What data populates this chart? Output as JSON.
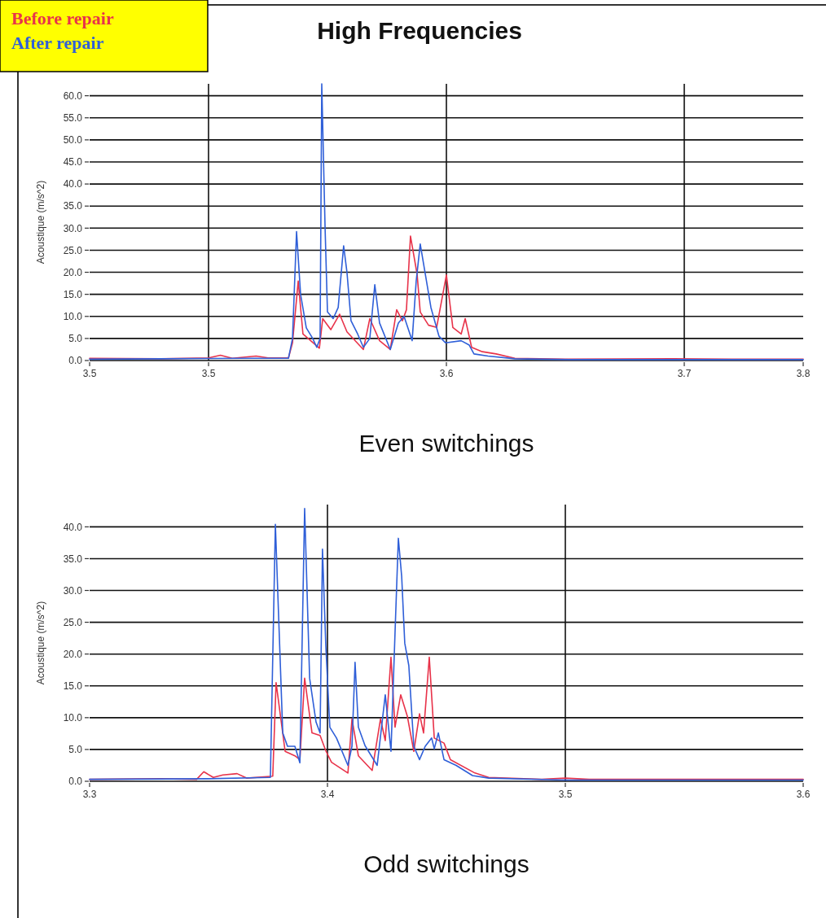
{
  "chart_data": [
    {
      "type": "line",
      "title": "High Frequencies",
      "xlabel": "Even switchings",
      "ylabel": "Acoustique (m/s^2)",
      "legend": "top left",
      "grid": true,
      "marker": "none",
      "line_style": "solid",
      "xlim": [
        3.45,
        3.75
      ],
      "xticks": [
        {
          "value": 3.45,
          "label": "3.5"
        },
        3.5,
        3.6,
        3.7,
        {
          "value": 3.75,
          "label": "3.8"
        }
      ],
      "ylim": [
        0,
        62.7
      ],
      "yticks": [
        {
          "value": 0,
          "label": "0.0"
        },
        {
          "value": 5,
          "label": "5.0"
        },
        {
          "value": 10,
          "label": "10.0"
        },
        {
          "value": 15,
          "label": "15.0"
        },
        {
          "value": 20,
          "label": "20.0"
        },
        {
          "value": 25,
          "label": "25.0"
        },
        {
          "value": 30,
          "label": "30.0"
        },
        {
          "value": 35,
          "label": "35.0"
        },
        {
          "value": 40,
          "label": "40.0"
        },
        {
          "value": 45,
          "label": "45.0"
        },
        {
          "value": 50,
          "label": "50.0"
        },
        {
          "value": 55,
          "label": "55.0"
        },
        {
          "value": 60,
          "label": "60.0"
        }
      ],
      "series": [
        {
          "name": "Before repair",
          "color": "#e8334a",
          "x": [
            3.45,
            3.48,
            3.5,
            3.505,
            3.51,
            3.52,
            3.525,
            3.5336,
            3.5353,
            3.5377,
            3.5397,
            3.5466,
            3.548,
            3.5514,
            3.5551,
            3.5582,
            3.5651,
            3.5678,
            3.5719,
            3.5764,
            3.5791,
            3.5815,
            3.5832,
            3.5849,
            3.5877,
            3.589,
            3.5925,
            3.5959,
            3.6,
            3.6027,
            3.6062,
            3.6079,
            3.6106,
            3.6151,
            3.6209,
            3.6288,
            3.65,
            3.695,
            3.72,
            3.75
          ],
          "values": [
            0.5,
            0.4,
            0.6,
            1.2,
            0.5,
            1.0,
            0.6,
            0.6,
            4,
            18,
            6,
            2.8,
            9.5,
            7,
            10.5,
            6.5,
            2.5,
            9.5,
            4.5,
            2.5,
            11.5,
            9,
            11.5,
            28.2,
            19.5,
            11,
            8,
            7.5,
            19.4,
            7.5,
            6,
            9.5,
            3,
            2,
            1.5,
            0.5,
            0.3,
            0.4,
            0.3,
            0.3
          ]
        },
        {
          "name": "After repair",
          "color": "#2f5fd8",
          "x": [
            3.45,
            3.4805,
            3.5147,
            3.5336,
            3.5353,
            3.537,
            3.5387,
            3.5411,
            3.5438,
            3.5455,
            3.5469,
            3.5476,
            3.549,
            3.55,
            3.5524,
            3.5545,
            3.5568,
            3.5582,
            3.5599,
            3.5627,
            3.5651,
            3.5678,
            3.5699,
            3.5719,
            3.5764,
            3.5798,
            3.5822,
            3.5856,
            3.5873,
            3.589,
            3.5935,
            3.5969,
            3.5997,
            3.6062,
            3.6096,
            3.6116,
            3.6175,
            3.6288,
            3.6517,
            3.75
          ],
          "values": [
            0.3,
            0.4,
            0.5,
            0.5,
            5,
            29.2,
            15,
            7.4,
            5,
            3,
            5,
            62.7,
            30,
            11,
            9.5,
            12,
            26,
            20,
            9,
            6,
            3,
            5,
            17.2,
            8.5,
            2.5,
            8.5,
            10,
            4.5,
            18,
            26.4,
            12,
            5.5,
            4,
            4.5,
            3.5,
            1.5,
            1,
            0.4,
            0.2,
            0.2
          ]
        }
      ]
    },
    {
      "type": "line",
      "xlabel": "Odd switchings",
      "ylabel": "Acoustique (m/s^2)",
      "grid": true,
      "marker": "none",
      "line_style": "solid",
      "xlim": [
        3.3,
        3.6
      ],
      "xticks": [
        3.3,
        3.4,
        3.5,
        3.6
      ],
      "ylim": [
        0,
        43.5
      ],
      "yticks": [
        {
          "value": 0,
          "label": "0.0"
        },
        {
          "value": 5,
          "label": "5.0"
        },
        {
          "value": 10,
          "label": "10.0"
        },
        {
          "value": 15,
          "label": "15.0"
        },
        {
          "value": 20,
          "label": "20.0"
        },
        {
          "value": 25,
          "label": "25.0"
        },
        {
          "value": 30,
          "label": "30.0"
        },
        {
          "value": 35,
          "label": "35.0"
        },
        {
          "value": 40,
          "label": "40.0"
        }
      ],
      "series": [
        {
          "color": "#e8334a",
          "x": [
            3.3,
            3.33,
            3.345,
            3.348,
            3.352,
            3.356,
            3.362,
            3.366,
            3.377,
            3.3784,
            3.3822,
            3.3863,
            3.3884,
            3.3904,
            3.3935,
            3.3969,
            3.3993,
            3.4017,
            3.4086,
            3.4103,
            3.413,
            3.4188,
            3.4223,
            3.4243,
            3.4267,
            3.4284,
            3.4308,
            3.4336,
            3.4363,
            3.4387,
            3.4404,
            3.4428,
            3.4449,
            3.449,
            3.4517,
            3.462,
            3.4678,
            3.49,
            3.5,
            3.51,
            3.6
          ],
          "values": [
            0.3,
            0.4,
            0.3,
            1.5,
            0.6,
            1.0,
            1.2,
            0.5,
            0.8,
            15.5,
            4.7,
            4.0,
            3.4,
            16.2,
            7.6,
            7.2,
            4.8,
            3.0,
            1.3,
            9.8,
            4.0,
            1.7,
            9.8,
            6.4,
            19.5,
            8.5,
            13.6,
            10.2,
            4.7,
            10.6,
            7.6,
            19.5,
            6.8,
            6.0,
            3.4,
            1.3,
            0.6,
            0.3,
            0.5,
            0.3,
            0.3
          ]
        },
        {
          "color": "#2f5fd8",
          "x": [
            3.3,
            3.35,
            3.376,
            3.3781,
            3.3812,
            3.3832,
            3.3863,
            3.3884,
            3.3904,
            3.3925,
            3.3952,
            3.3969,
            3.3979,
            3.3993,
            3.401,
            3.4038,
            3.4086,
            3.4103,
            3.4116,
            3.413,
            3.4158,
            3.4209,
            3.4243,
            3.4267,
            3.4284,
            3.4298,
            3.4312,
            3.4325,
            3.4342,
            3.4363,
            3.4387,
            3.4411,
            3.4438,
            3.4449,
            3.4466,
            3.449,
            3.4541,
            3.461,
            3.4678,
            3.5,
            3.6
          ],
          "values": [
            0.3,
            0.4,
            0.6,
            40.4,
            7.6,
            5.5,
            5.5,
            2.9,
            42.9,
            16.2,
            9.3,
            7.6,
            36.5,
            21.3,
            8.5,
            6.8,
            2.5,
            5.5,
            18.7,
            8.5,
            5.6,
            2.5,
            13.6,
            4.7,
            23.3,
            38.2,
            32.2,
            21.7,
            18.2,
            5.5,
            3.4,
            5.5,
            6.8,
            5.1,
            7.6,
            3.4,
            2.5,
            0.9,
            0.5,
            0.2,
            0.2
          ]
        }
      ]
    }
  ]
}
